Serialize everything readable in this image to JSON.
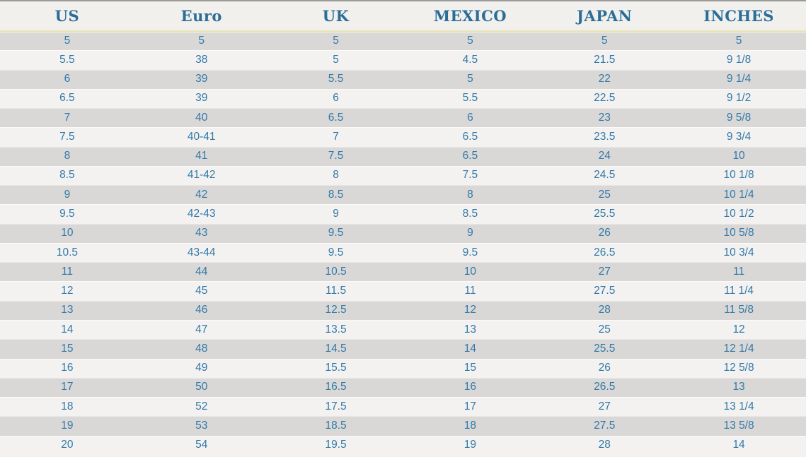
{
  "chart_data": {
    "type": "table",
    "columns": [
      "US",
      "Euro",
      "UK",
      "MEXICO",
      "JAPAN",
      "INCHES"
    ],
    "rows": [
      [
        "5",
        "5",
        "5",
        "5",
        "5",
        "5"
      ],
      [
        "5.5",
        "38",
        "5",
        "4.5",
        "21.5",
        "9 1/8"
      ],
      [
        "6",
        "39",
        "5.5",
        "5",
        "22",
        "9 1/4"
      ],
      [
        "6.5",
        "39",
        "6",
        "5.5",
        "22.5",
        "9 1/2"
      ],
      [
        "7",
        "40",
        "6.5",
        "6",
        "23",
        "9 5/8"
      ],
      [
        "7.5",
        "40-41",
        "7",
        "6.5",
        "23.5",
        "9 3/4"
      ],
      [
        "8",
        "41",
        "7.5",
        "6.5",
        "24",
        "10"
      ],
      [
        "8.5",
        "41-42",
        "8",
        "7.5",
        "24.5",
        "10 1/8"
      ],
      [
        "9",
        "42",
        "8.5",
        "8",
        "25",
        "10 1/4"
      ],
      [
        "9.5",
        "42-43",
        "9",
        "8.5",
        "25.5",
        "10 1/2"
      ],
      [
        "10",
        "43",
        "9.5",
        "9",
        "26",
        "10 5/8"
      ],
      [
        "10.5",
        "43-44",
        "9.5",
        "9.5",
        "26.5",
        "10 3/4"
      ],
      [
        "11",
        "44",
        "10.5",
        "10",
        "27",
        "11"
      ],
      [
        "12",
        "45",
        "11.5",
        "11",
        "27.5",
        "11 1/4"
      ],
      [
        "13",
        "46",
        "12.5",
        "12",
        "28",
        "11 5/8"
      ],
      [
        "14",
        "47",
        "13.5",
        "13",
        "25",
        "12"
      ],
      [
        "15",
        "48",
        "14.5",
        "14",
        "25.5",
        "12 1/4"
      ],
      [
        "16",
        "49",
        "15.5",
        "15",
        "26",
        "12 5/8"
      ],
      [
        "17",
        "50",
        "16.5",
        "16",
        "26.5",
        "13"
      ],
      [
        "18",
        "52",
        "17.5",
        "17",
        "27",
        "13 1/4"
      ],
      [
        "19",
        "53",
        "18.5",
        "18",
        "27.5",
        "13 5/8"
      ],
      [
        "20",
        "54",
        "19.5",
        "19",
        "28",
        "14"
      ]
    ]
  },
  "colors": {
    "header_text": "#2a6d99",
    "cell_text": "#3279a9",
    "header_bg": "#f1f0ec",
    "row_stripe_dark": "#d9d8d6",
    "row_stripe_light": "#f3f2f0",
    "header_separator": "#e7e4bc",
    "top_edge": "#9a9a98"
  }
}
